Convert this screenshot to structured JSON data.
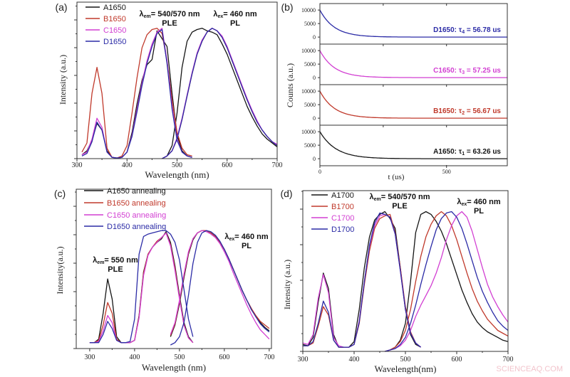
{
  "watermark": "SCIENCEAQ.COM",
  "colors": {
    "A": "#151515",
    "B": "#c0392b",
    "C": "#d23fd2",
    "D": "#2b2ba6",
    "axis": "#333333",
    "watermark": "#f2c4cc"
  },
  "chart_data": [
    {
      "panel": "(a)",
      "type": "line",
      "xlabel": "Wavelength (nm)",
      "ylabel": "Intensity (a.u.)",
      "xlim": [
        300,
        700
      ],
      "ylim": [
        0,
        1.2
      ],
      "xticks": [
        "300",
        "400",
        "500",
        "600",
        "700"
      ],
      "grid": false,
      "legend_position": "top-left",
      "annotations": [
        {
          "sym": "λ",
          "sub": "em",
          "text": "= 540/570 nm",
          "line2": "PLE"
        },
        {
          "sym": "λ",
          "sub": "ex",
          "text": "= 460 nm",
          "line2": "PL"
        }
      ],
      "ple_x": [
        310,
        320,
        330,
        340,
        350,
        360,
        370,
        380,
        390,
        400,
        410,
        420,
        430,
        440,
        450,
        460,
        470,
        480,
        490,
        500,
        510,
        520,
        530
      ],
      "pl_x": [
        470,
        480,
        490,
        500,
        510,
        520,
        530,
        540,
        550,
        560,
        570,
        580,
        590,
        600,
        610,
        620,
        630,
        640,
        650,
        660,
        670,
        680,
        690,
        700
      ],
      "series": [
        {
          "name": "A1650",
          "color": "#151515",
          "ple": [
            0.03,
            0.06,
            0.14,
            0.27,
            0.22,
            0.06,
            0.01,
            0.005,
            0.01,
            0.05,
            0.2,
            0.42,
            0.6,
            0.72,
            0.76,
            0.98,
            0.92,
            0.86,
            0.5,
            0.18,
            0.06,
            0.02,
            0.01
          ],
          "pl": [
            0.0,
            0.02,
            0.1,
            0.35,
            0.7,
            0.9,
            0.97,
            0.99,
            1.0,
            0.98,
            0.97,
            0.95,
            0.88,
            0.8,
            0.7,
            0.6,
            0.5,
            0.4,
            0.32,
            0.25,
            0.19,
            0.15,
            0.12,
            0.09
          ]
        },
        {
          "name": "B1650",
          "color": "#c0392b",
          "ple": [
            0.05,
            0.12,
            0.5,
            0.7,
            0.5,
            0.08,
            0.01,
            0.005,
            0.02,
            0.1,
            0.35,
            0.62,
            0.85,
            0.95,
            0.99,
            1.0,
            0.96,
            0.75,
            0.45,
            0.2,
            0.08,
            0.03,
            0.02
          ],
          "pl": [
            0.0,
            0.02,
            0.06,
            0.15,
            0.3,
            0.48,
            0.65,
            0.8,
            0.9,
            0.97,
            1.0,
            0.98,
            0.93,
            0.85,
            0.75,
            0.65,
            0.55,
            0.45,
            0.36,
            0.28,
            0.22,
            0.17,
            0.13,
            0.1
          ]
        },
        {
          "name": "C1650",
          "color": "#d23fd2",
          "ple": [
            0.03,
            0.05,
            0.15,
            0.31,
            0.24,
            0.05,
            0.01,
            0.005,
            0.01,
            0.05,
            0.18,
            0.38,
            0.58,
            0.75,
            0.88,
            0.97,
            1.0,
            0.75,
            0.4,
            0.15,
            0.05,
            0.02,
            0.01
          ],
          "pl": [
            0.0,
            0.02,
            0.06,
            0.16,
            0.31,
            0.49,
            0.66,
            0.81,
            0.91,
            0.97,
            1.0,
            0.98,
            0.94,
            0.86,
            0.76,
            0.66,
            0.56,
            0.46,
            0.37,
            0.29,
            0.22,
            0.17,
            0.13,
            0.11
          ]
        },
        {
          "name": "D1650",
          "color": "#2b2ba6",
          "ple": [
            0.02,
            0.04,
            0.13,
            0.28,
            0.22,
            0.05,
            0.01,
            0.005,
            0.01,
            0.05,
            0.17,
            0.36,
            0.56,
            0.73,
            0.86,
            0.96,
            0.99,
            0.73,
            0.38,
            0.14,
            0.05,
            0.02,
            0.01
          ],
          "pl": [
            0.0,
            0.02,
            0.06,
            0.15,
            0.3,
            0.48,
            0.65,
            0.8,
            0.9,
            0.97,
            1.0,
            0.98,
            0.93,
            0.85,
            0.75,
            0.65,
            0.55,
            0.45,
            0.36,
            0.28,
            0.22,
            0.17,
            0.13,
            0.1
          ]
        }
      ]
    },
    {
      "panel": "(b)",
      "type": "line",
      "xlabel": "t (us)",
      "ylabel": "Counts (a.u.)",
      "xlim": [
        0,
        740
      ],
      "ylim": [
        -2600,
        12400
      ],
      "xticks": [
        "0",
        "500"
      ],
      "yticks": [
        "10000",
        "5000",
        "0"
      ],
      "grid": false,
      "amplitude": 10000,
      "series": [
        {
          "name": "D1650",
          "color": "#2b2ba6",
          "label": "D1650:  τ",
          "sub": "4",
          "value": " = 56.78 us",
          "tau": 56.78
        },
        {
          "name": "C1650",
          "color": "#d23fd2",
          "label": "C1650:  τ",
          "sub": "3",
          "value": " = 57.25 us",
          "tau": 57.25
        },
        {
          "name": "B1650",
          "color": "#c0392b",
          "label": "B1650:  τ",
          "sub": "2",
          "value": " = 56.67 us",
          "tau": 56.67
        },
        {
          "name": "A1650",
          "color": "#151515",
          "label": "A1650:  τ",
          "sub": "1",
          "value": " = 63.26 us",
          "tau": 63.26
        }
      ]
    },
    {
      "panel": "(c)",
      "type": "line",
      "xlabel": "Wavelength (nm)",
      "ylabel": "Intensity(a.u.)",
      "xlim": [
        270,
        705
      ],
      "ylim": [
        0,
        1.35
      ],
      "xticks": [
        "300",
        "400",
        "500",
        "600",
        "700"
      ],
      "grid": false,
      "legend_position": "top-left",
      "annotations": [
        {
          "sym": "λ",
          "sub": "em",
          "text": "= 550 nm",
          "line2": "PLE"
        },
        {
          "sym": "λ",
          "sub": "ex",
          "text": "= 460 nm",
          "line2": "PL"
        }
      ],
      "ple_x": [
        300,
        310,
        320,
        330,
        340,
        350,
        360,
        370,
        380,
        390,
        400,
        410,
        420,
        430,
        440,
        450,
        460,
        470,
        480,
        490,
        500,
        510,
        520,
        530
      ],
      "pl_x": [
        480,
        490,
        500,
        510,
        520,
        530,
        540,
        550,
        560,
        570,
        580,
        590,
        600,
        610,
        620,
        630,
        640,
        650,
        660,
        670,
        680,
        690,
        700
      ],
      "series": [
        {
          "name": "A1650 annealing",
          "color": "#151515",
          "ple": [
            0.05,
            0.05,
            0.08,
            0.3,
            0.59,
            0.42,
            0.1,
            0.05,
            0.05,
            0.05,
            0.07,
            0.28,
            0.65,
            0.8,
            0.86,
            0.9,
            0.93,
            0.99,
            0.9,
            0.7,
            0.45,
            0.22,
            0.1,
            0.05
          ],
          "pl": [
            0.1,
            0.2,
            0.38,
            0.6,
            0.8,
            0.92,
            0.98,
            1.0,
            1.0,
            0.98,
            0.95,
            0.9,
            0.84,
            0.76,
            0.67,
            0.58,
            0.49,
            0.41,
            0.34,
            0.27,
            0.22,
            0.18,
            0.15
          ]
        },
        {
          "name": "B1650 annealing",
          "color": "#c0392b",
          "ple": [
            0.05,
            0.05,
            0.07,
            0.2,
            0.39,
            0.3,
            0.08,
            0.05,
            0.05,
            0.05,
            0.07,
            0.27,
            0.64,
            0.8,
            0.86,
            0.91,
            0.94,
            0.98,
            0.88,
            0.68,
            0.43,
            0.2,
            0.09,
            0.05
          ],
          "pl": [
            0.11,
            0.21,
            0.4,
            0.62,
            0.81,
            0.93,
            0.98,
            1.0,
            1.0,
            0.98,
            0.95,
            0.9,
            0.84,
            0.76,
            0.67,
            0.58,
            0.49,
            0.41,
            0.34,
            0.28,
            0.23,
            0.2,
            0.17
          ]
        },
        {
          "name": "C1650 annealing",
          "color": "#d23fd2",
          "ple": [
            0.05,
            0.05,
            0.06,
            0.15,
            0.28,
            0.22,
            0.07,
            0.05,
            0.05,
            0.05,
            0.07,
            0.26,
            0.62,
            0.79,
            0.86,
            0.9,
            0.94,
            0.98,
            0.87,
            0.66,
            0.42,
            0.2,
            0.09,
            0.05
          ],
          "pl": [
            0.12,
            0.22,
            0.41,
            0.63,
            0.82,
            0.93,
            0.98,
            1.0,
            0.99,
            0.97,
            0.94,
            0.89,
            0.82,
            0.74,
            0.64,
            0.55,
            0.46,
            0.37,
            0.29,
            0.22,
            0.16,
            0.12,
            0.08
          ]
        },
        {
          "name": "D1650 annealing",
          "color": "#2b2ba6",
          "ple": [
            0.05,
            0.05,
            0.05,
            0.12,
            0.23,
            0.17,
            0.07,
            0.05,
            0.05,
            0.06,
            0.25,
            0.8,
            0.95,
            0.97,
            0.98,
            0.99,
            1.0,
            1.0,
            0.97,
            0.9,
            0.75,
            0.5,
            0.25,
            0.1
          ],
          "pl": [
            0.03,
            0.05,
            0.1,
            0.22,
            0.45,
            0.72,
            0.9,
            0.98,
            1.0,
            0.99,
            0.96,
            0.91,
            0.84,
            0.76,
            0.67,
            0.58,
            0.49,
            0.41,
            0.33,
            0.27,
            0.21,
            0.17,
            0.14
          ]
        }
      ]
    },
    {
      "panel": "(d)",
      "type": "line",
      "xlabel": "Wavelength(nm)",
      "ylabel": "Intensity (a.u.)",
      "xlim": [
        300,
        700
      ],
      "ylim": [
        0,
        1.15
      ],
      "xticks": [
        "300",
        "400",
        "500",
        "600",
        "700"
      ],
      "grid": false,
      "legend_position": "top-left",
      "annotations": [
        {
          "sym": "λ",
          "sub": "em",
          "text": "= 540/570 nm",
          "line2": "PLE"
        },
        {
          "sym": "λ",
          "sub": "ex",
          "text": "= 460 nm",
          "line2": "PL"
        }
      ],
      "ple_x": [
        300,
        310,
        320,
        330,
        340,
        350,
        360,
        370,
        380,
        390,
        400,
        410,
        420,
        430,
        440,
        450,
        460,
        470,
        480,
        490,
        500,
        510,
        520,
        530
      ],
      "pl_x": [
        460,
        470,
        480,
        490,
        500,
        510,
        520,
        530,
        540,
        550,
        560,
        570,
        580,
        590,
        600,
        610,
        620,
        630,
        640,
        650,
        660,
        670,
        680,
        690,
        700
      ],
      "series": [
        {
          "name": "A1700",
          "color": "#151515",
          "ple": [
            0.05,
            0.04,
            0.1,
            0.35,
            0.56,
            0.45,
            0.12,
            0.03,
            0.03,
            0.03,
            0.07,
            0.3,
            0.6,
            0.82,
            0.94,
            0.98,
            1.0,
            0.95,
            0.88,
            0.6,
            0.3,
            0.12,
            0.05,
            0.03
          ],
          "pl": [
            0.0,
            0.01,
            0.03,
            0.08,
            0.2,
            0.5,
            0.85,
            0.98,
            1.0,
            0.98,
            0.93,
            0.86,
            0.77,
            0.66,
            0.55,
            0.44,
            0.35,
            0.27,
            0.21,
            0.17,
            0.14,
            0.12,
            0.1,
            0.08,
            0.07
          ]
        },
        {
          "name": "B1700",
          "color": "#c0392b",
          "ple": [
            0.04,
            0.04,
            0.06,
            0.18,
            0.32,
            0.26,
            0.08,
            0.03,
            0.03,
            0.03,
            0.05,
            0.2,
            0.48,
            0.72,
            0.88,
            0.95,
            0.97,
            0.98,
            0.85,
            0.6,
            0.32,
            0.14,
            0.06,
            0.03
          ],
          "pl": [
            0.0,
            0.01,
            0.03,
            0.07,
            0.15,
            0.3,
            0.5,
            0.68,
            0.82,
            0.91,
            0.97,
            1.0,
            0.97,
            0.9,
            0.8,
            0.68,
            0.56,
            0.45,
            0.36,
            0.29,
            0.23,
            0.19,
            0.15,
            0.13,
            0.11
          ]
        },
        {
          "name": "C1700",
          "color": "#d23fd2",
          "ple": [
            0.06,
            0.05,
            0.12,
            0.38,
            0.55,
            0.42,
            0.1,
            0.04,
            0.03,
            0.03,
            0.05,
            0.22,
            0.5,
            0.75,
            0.9,
            0.97,
            0.98,
            0.96,
            0.84,
            0.58,
            0.3,
            0.13,
            0.06,
            0.03
          ],
          "pl": [
            0.0,
            0.01,
            0.02,
            0.04,
            0.08,
            0.15,
            0.25,
            0.33,
            0.4,
            0.47,
            0.56,
            0.67,
            0.8,
            0.9,
            0.97,
            1.0,
            0.96,
            0.86,
            0.73,
            0.6,
            0.48,
            0.39,
            0.32,
            0.26,
            0.21
          ]
        },
        {
          "name": "D1700",
          "color": "#2b2ba6",
          "ple": [
            0.04,
            0.04,
            0.07,
            0.2,
            0.36,
            0.28,
            0.08,
            0.03,
            0.03,
            0.03,
            0.05,
            0.21,
            0.5,
            0.76,
            0.92,
            0.99,
            0.98,
            0.96,
            0.84,
            0.58,
            0.3,
            0.13,
            0.06,
            0.03
          ],
          "pl": [
            0.0,
            0.01,
            0.02,
            0.05,
            0.1,
            0.2,
            0.33,
            0.48,
            0.62,
            0.75,
            0.87,
            0.95,
            0.99,
            1.0,
            0.96,
            0.88,
            0.77,
            0.65,
            0.53,
            0.43,
            0.35,
            0.28,
            0.22,
            0.18,
            0.15
          ]
        }
      ]
    }
  ]
}
